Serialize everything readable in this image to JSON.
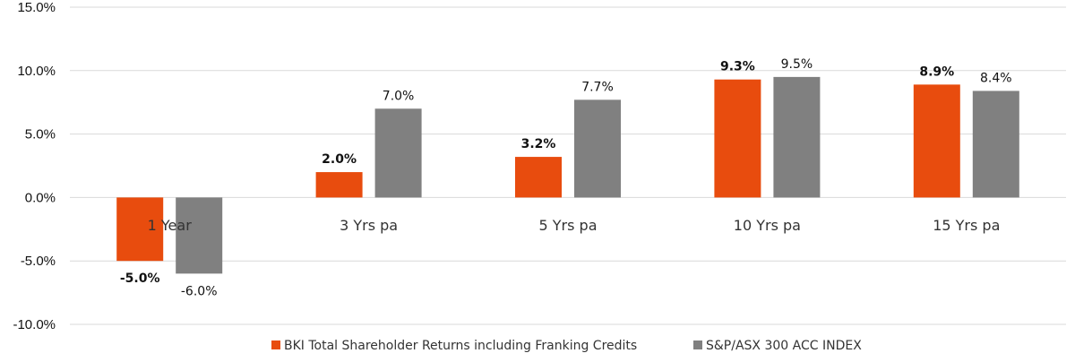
{
  "chart_data": {
    "type": "bar",
    "title": "",
    "xlabel": "",
    "ylabel": "",
    "categories": [
      "1 Year",
      "3 Yrs pa",
      "5 Yrs pa",
      "10 Yrs pa",
      "15 Yrs pa"
    ],
    "ylim": [
      -10,
      15
    ],
    "yticks": [
      -10,
      -5,
      0,
      5,
      10,
      15
    ],
    "ytick_labels": [
      "-10.0%",
      "-5.0%",
      "0.0%",
      "5.0%",
      "10.0%",
      "15.0%"
    ],
    "grid": true,
    "legend_position": "bottom",
    "series": [
      {
        "name": "BKI Total Shareholder Returns including Franking Credits",
        "color": "#e84c0e",
        "label_weight": "bold",
        "values": [
          -5.0,
          2.0,
          3.2,
          9.3,
          8.9
        ],
        "labels": [
          "-5.0%",
          "2.0%",
          "3.2%",
          "9.3%",
          "8.9%"
        ]
      },
      {
        "name": "S&P/ASX 300 ACC INDEX",
        "color": "#808080",
        "label_weight": "normal",
        "values": [
          -6.0,
          7.0,
          7.7,
          9.5,
          8.4
        ],
        "labels": [
          "-6.0%",
          "7.0%",
          "7.7%",
          "9.5%",
          "8.4%"
        ]
      }
    ]
  }
}
